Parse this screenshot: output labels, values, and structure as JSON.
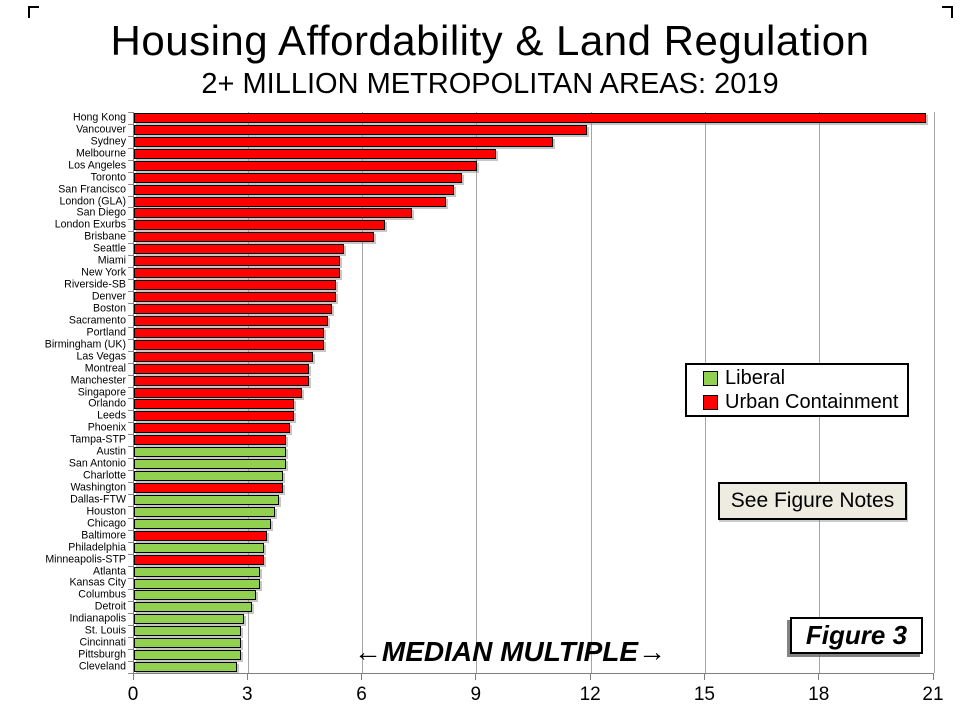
{
  "page": {
    "title": "Housing Affordability & Land Regulation",
    "subtitle": "2+ MILLION METROPOLITAN AREAS: 2019"
  },
  "legend": {
    "items": [
      {
        "label": "Liberal",
        "color": "#92d050"
      },
      {
        "label": "Urban Containment",
        "color": "#ff0000"
      }
    ]
  },
  "notes_button_label": "See Figure Notes",
  "figure_badge_label": "Figure 3",
  "chart_data": {
    "type": "bar",
    "orientation": "horizontal",
    "title": "Housing Affordability & Land Regulation",
    "subtitle": "2+ MILLION METROPOLITAN AREAS: 2019",
    "xlabel": "MEDIAN MULTIPLE",
    "xlabel_annotation": "←MEDIAN MULTIPLE→",
    "xlim": [
      0,
      21
    ],
    "xticks": [
      0,
      3,
      6,
      9,
      12,
      15,
      18,
      21
    ],
    "grid": true,
    "legend_position": "middle-right",
    "series_colors": {
      "Liberal": "#92d050",
      "Urban Containment": "#ff0000"
    },
    "cities": [
      {
        "name": "Hong Kong",
        "value": 20.8,
        "group": "Urban Containment"
      },
      {
        "name": "Vancouver",
        "value": 11.9,
        "group": "Urban Containment"
      },
      {
        "name": "Sydney",
        "value": 11.0,
        "group": "Urban Containment"
      },
      {
        "name": "Melbourne",
        "value": 9.5,
        "group": "Urban Containment"
      },
      {
        "name": "Los Angeles",
        "value": 9.0,
        "group": "Urban Containment"
      },
      {
        "name": "Toronto",
        "value": 8.6,
        "group": "Urban Containment"
      },
      {
        "name": "San Francisco",
        "value": 8.4,
        "group": "Urban Containment"
      },
      {
        "name": "London (GLA)",
        "value": 8.2,
        "group": "Urban Containment"
      },
      {
        "name": "San Diego",
        "value": 7.3,
        "group": "Urban Containment"
      },
      {
        "name": "London Exurbs",
        "value": 6.6,
        "group": "Urban Containment"
      },
      {
        "name": "Brisbane",
        "value": 6.3,
        "group": "Urban Containment"
      },
      {
        "name": "Seattle",
        "value": 5.5,
        "group": "Urban Containment"
      },
      {
        "name": "Miami",
        "value": 5.4,
        "group": "Urban Containment"
      },
      {
        "name": "New York",
        "value": 5.4,
        "group": "Urban Containment"
      },
      {
        "name": "Riverside-SB",
        "value": 5.3,
        "group": "Urban Containment"
      },
      {
        "name": "Denver",
        "value": 5.3,
        "group": "Urban Containment"
      },
      {
        "name": "Boston",
        "value": 5.2,
        "group": "Urban Containment"
      },
      {
        "name": "Sacramento",
        "value": 5.1,
        "group": "Urban Containment"
      },
      {
        "name": "Portland",
        "value": 5.0,
        "group": "Urban Containment"
      },
      {
        "name": "Birmingham (UK)",
        "value": 5.0,
        "group": "Urban Containment"
      },
      {
        "name": "Las Vegas",
        "value": 4.7,
        "group": "Urban Containment"
      },
      {
        "name": "Montreal",
        "value": 4.6,
        "group": "Urban Containment"
      },
      {
        "name": "Manchester",
        "value": 4.6,
        "group": "Urban Containment"
      },
      {
        "name": "Singapore",
        "value": 4.4,
        "group": "Urban Containment"
      },
      {
        "name": "Orlando",
        "value": 4.2,
        "group": "Urban Containment"
      },
      {
        "name": "Leeds",
        "value": 4.2,
        "group": "Urban Containment"
      },
      {
        "name": "Phoenix",
        "value": 4.1,
        "group": "Urban Containment"
      },
      {
        "name": "Tampa-STP",
        "value": 4.0,
        "group": "Urban Containment"
      },
      {
        "name": "Austin",
        "value": 4.0,
        "group": "Liberal"
      },
      {
        "name": "San Antonio",
        "value": 4.0,
        "group": "Liberal"
      },
      {
        "name": "Charlotte",
        "value": 3.9,
        "group": "Liberal"
      },
      {
        "name": "Washington",
        "value": 3.9,
        "group": "Urban Containment"
      },
      {
        "name": "Dallas-FTW",
        "value": 3.8,
        "group": "Liberal"
      },
      {
        "name": "Houston",
        "value": 3.7,
        "group": "Liberal"
      },
      {
        "name": "Chicago",
        "value": 3.6,
        "group": "Liberal"
      },
      {
        "name": "Baltimore",
        "value": 3.5,
        "group": "Urban Containment"
      },
      {
        "name": "Philadelphia",
        "value": 3.4,
        "group": "Liberal"
      },
      {
        "name": "Minneapolis-STP",
        "value": 3.4,
        "group": "Urban Containment"
      },
      {
        "name": "Atlanta",
        "value": 3.3,
        "group": "Liberal"
      },
      {
        "name": "Kansas City",
        "value": 3.3,
        "group": "Liberal"
      },
      {
        "name": "Columbus",
        "value": 3.2,
        "group": "Liberal"
      },
      {
        "name": "Detroit",
        "value": 3.1,
        "group": "Liberal"
      },
      {
        "name": "Indianapolis",
        "value": 2.9,
        "group": "Liberal"
      },
      {
        "name": "St. Louis",
        "value": 2.8,
        "group": "Liberal"
      },
      {
        "name": "Cincinnati",
        "value": 2.8,
        "group": "Liberal"
      },
      {
        "name": "Pittsburgh",
        "value": 2.8,
        "group": "Liberal"
      },
      {
        "name": "Cleveland",
        "value": 2.7,
        "group": "Liberal"
      }
    ]
  }
}
